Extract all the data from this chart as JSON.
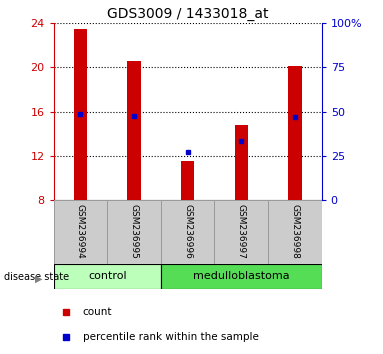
{
  "title": "GDS3009 / 1433018_at",
  "samples": [
    "GSM236994",
    "GSM236995",
    "GSM236996",
    "GSM236997",
    "GSM236998"
  ],
  "bar_values": [
    23.5,
    20.6,
    11.5,
    14.8,
    20.1
  ],
  "percentile_values": [
    15.8,
    15.6,
    12.3,
    13.3,
    15.5
  ],
  "bar_color": "#cc0000",
  "percentile_color": "#0000cc",
  "ylim_left": [
    8,
    24
  ],
  "yticks_left": [
    8,
    12,
    16,
    20,
    24
  ],
  "ylim_right": [
    0,
    100
  ],
  "yticks_right": [
    0,
    25,
    50,
    75,
    100
  ],
  "groups": [
    {
      "label": "control",
      "n_samples": 2,
      "color": "#bbffbb"
    },
    {
      "label": "medulloblastoma",
      "n_samples": 3,
      "color": "#55dd55"
    }
  ],
  "disease_state_label": "disease state",
  "legend_count_label": "count",
  "legend_percentile_label": "percentile rank within the sample",
  "tick_label_color_left": "#cc0000",
  "tick_label_color_right": "#0000cc",
  "bar_width": 0.25,
  "sample_box_color": "#cccccc",
  "sample_box_border": "#999999"
}
